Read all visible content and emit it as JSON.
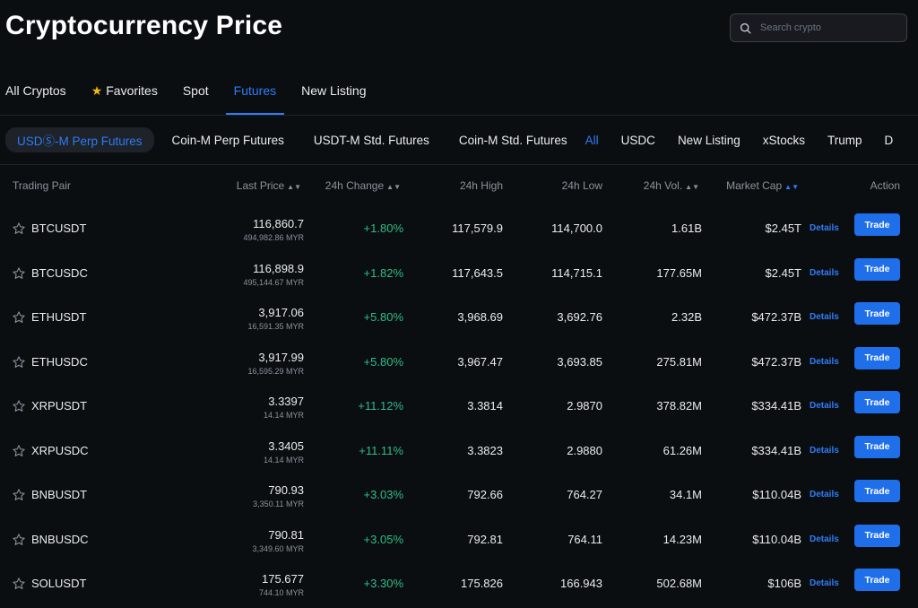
{
  "page": {
    "title": "Cryptocurrency Price"
  },
  "search": {
    "placeholder": "Search crypto"
  },
  "tabs": [
    {
      "label": "All Cryptos"
    },
    {
      "label": "Favorites"
    },
    {
      "label": "Spot"
    },
    {
      "label": "Futures",
      "active": true
    },
    {
      "label": "New Listing"
    }
  ],
  "subtabs": [
    {
      "label": "USDⓈ-M Perp Futures",
      "active": true
    },
    {
      "label": "Coin-M Perp Futures"
    },
    {
      "label": "USDT-M Std. Futures"
    },
    {
      "label": "Coin-M Std. Futures"
    }
  ],
  "filters": [
    {
      "label": "All",
      "active": true
    },
    {
      "label": "USDC"
    },
    {
      "label": "New Listing"
    },
    {
      "label": "xStocks"
    },
    {
      "label": "Trump"
    },
    {
      "label": "D"
    }
  ],
  "table": {
    "headers": {
      "pair": "Trading Pair",
      "last_price": "Last Price",
      "change": "24h Change",
      "high": "24h High",
      "low": "24h Low",
      "volume": "24h Vol.",
      "market_cap": "Market Cap",
      "action": "Action"
    },
    "details_label": "Details",
    "trade_label": "Trade",
    "rows": [
      {
        "pair": "BTCUSDT",
        "price": "116,860.7",
        "price_myr": "494,982.86 MYR",
        "change": "+1.80%",
        "high": "117,579.9",
        "low": "114,700.0",
        "volume": "1.61B",
        "market_cap": "$2.45T"
      },
      {
        "pair": "BTCUSDC",
        "price": "116,898.9",
        "price_myr": "495,144.67 MYR",
        "change": "+1.82%",
        "high": "117,643.5",
        "low": "114,715.1",
        "volume": "177.65M",
        "market_cap": "$2.45T"
      },
      {
        "pair": "ETHUSDT",
        "price": "3,917.06",
        "price_myr": "16,591.35 MYR",
        "change": "+5.80%",
        "high": "3,968.69",
        "low": "3,692.76",
        "volume": "2.32B",
        "market_cap": "$472.37B"
      },
      {
        "pair": "ETHUSDC",
        "price": "3,917.99",
        "price_myr": "16,595.29 MYR",
        "change": "+5.80%",
        "high": "3,967.47",
        "low": "3,693.85",
        "volume": "275.81M",
        "market_cap": "$472.37B"
      },
      {
        "pair": "XRPUSDT",
        "price": "3.3397",
        "price_myr": "14.14 MYR",
        "change": "+11.12%",
        "high": "3.3814",
        "low": "2.9870",
        "volume": "378.82M",
        "market_cap": "$334.41B"
      },
      {
        "pair": "XRPUSDC",
        "price": "3.3405",
        "price_myr": "14.14 MYR",
        "change": "+11.11%",
        "high": "3.3823",
        "low": "2.9880",
        "volume": "61.26M",
        "market_cap": "$334.41B"
      },
      {
        "pair": "BNBUSDT",
        "price": "790.93",
        "price_myr": "3,350.11 MYR",
        "change": "+3.03%",
        "high": "792.66",
        "low": "764.27",
        "volume": "34.1M",
        "market_cap": "$110.04B"
      },
      {
        "pair": "BNBUSDC",
        "price": "790.81",
        "price_myr": "3,349.60 MYR",
        "change": "+3.05%",
        "high": "792.81",
        "low": "764.11",
        "volume": "14.23M",
        "market_cap": "$110.04B"
      },
      {
        "pair": "SOLUSDT",
        "price": "175.677",
        "price_myr": "744.10 MYR",
        "change": "+3.30%",
        "high": "175.826",
        "low": "166.943",
        "volume": "502.68M",
        "market_cap": "$106B"
      }
    ]
  },
  "colors": {
    "background": "#0b0e11",
    "accent_blue": "#2f7cf6",
    "positive_green": "#2ebd85",
    "favorite_star": "#f0b90b",
    "trade_button": "#1f6feb"
  }
}
